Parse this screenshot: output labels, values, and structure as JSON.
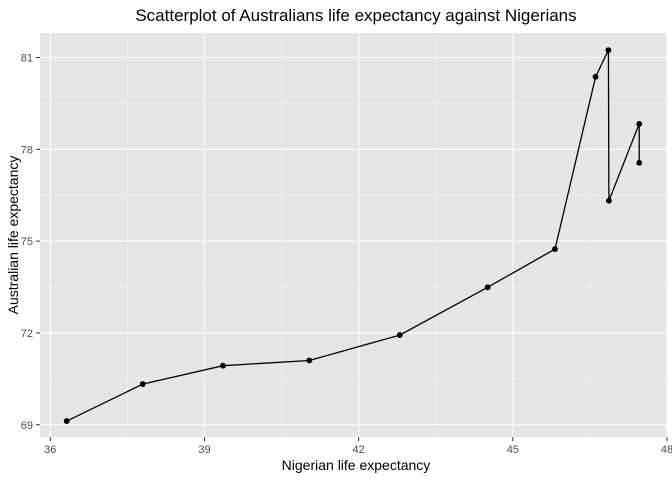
{
  "chart_data": {
    "type": "scatter",
    "title": "Scatterplot of Australians life expectancy against Nigerians",
    "xlabel": "Nigerian life expectancy",
    "ylabel": "Australian life expectancy",
    "xlim": [
      35.8,
      48.0
    ],
    "ylim": [
      68.6,
      81.8
    ],
    "xticks": [
      36,
      39,
      42,
      45,
      48
    ],
    "yticks": [
      69,
      72,
      75,
      78,
      81
    ],
    "grid": true,
    "connect_points": true,
    "points": [
      {
        "x": 36.32,
        "y": 69.12
      },
      {
        "x": 37.8,
        "y": 70.33
      },
      {
        "x": 39.36,
        "y": 70.93
      },
      {
        "x": 41.04,
        "y": 71.1
      },
      {
        "x": 42.8,
        "y": 71.93
      },
      {
        "x": 44.51,
        "y": 73.49
      },
      {
        "x": 45.82,
        "y": 74.74
      },
      {
        "x": 46.61,
        "y": 80.37
      },
      {
        "x": 46.86,
        "y": 81.24
      },
      {
        "x": 46.87,
        "y": 76.32
      },
      {
        "x": 47.46,
        "y": 78.83
      },
      {
        "x": 47.46,
        "y": 77.56
      }
    ]
  }
}
